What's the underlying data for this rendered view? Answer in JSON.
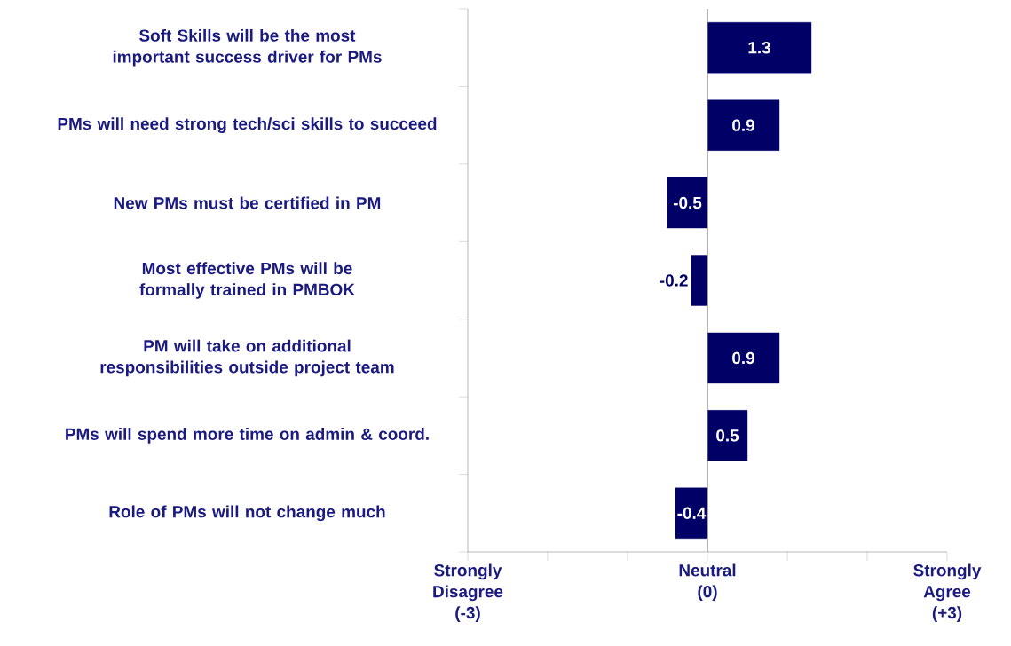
{
  "chart_data": {
    "type": "bar",
    "orientation": "horizontal",
    "categories": [
      "Soft Skills will be the most important success driver for PMs",
      "PMs will need strong tech/sci skills to succeed",
      "New PMs must be certified in PM",
      "Most effective PMs will be formally trained in PMBOK",
      "PM will take on additional responsibilities outside project team",
      "PMs will spend more time on admin & coord.",
      "Role of PMs will not change much"
    ],
    "values": [
      1.3,
      0.9,
      -0.5,
      -0.2,
      0.9,
      0.5,
      -0.4
    ],
    "color": "#000066",
    "data_labels": true,
    "xlim": [
      -3,
      3
    ],
    "xticks": [
      {
        "value": -3,
        "label": "Strongly Disagree (-3)"
      },
      {
        "value": -2,
        "label": null
      },
      {
        "value": -1,
        "label": null
      },
      {
        "value": 0,
        "label": "Neutral (0)"
      },
      {
        "value": 1,
        "label": null
      },
      {
        "value": 2,
        "label": null
      },
      {
        "value": 3,
        "label": "Strongly Agree (+3)"
      }
    ],
    "ref_lines": [
      {
        "axis": "x",
        "value": 0,
        "color": "#808080"
      }
    ]
  }
}
